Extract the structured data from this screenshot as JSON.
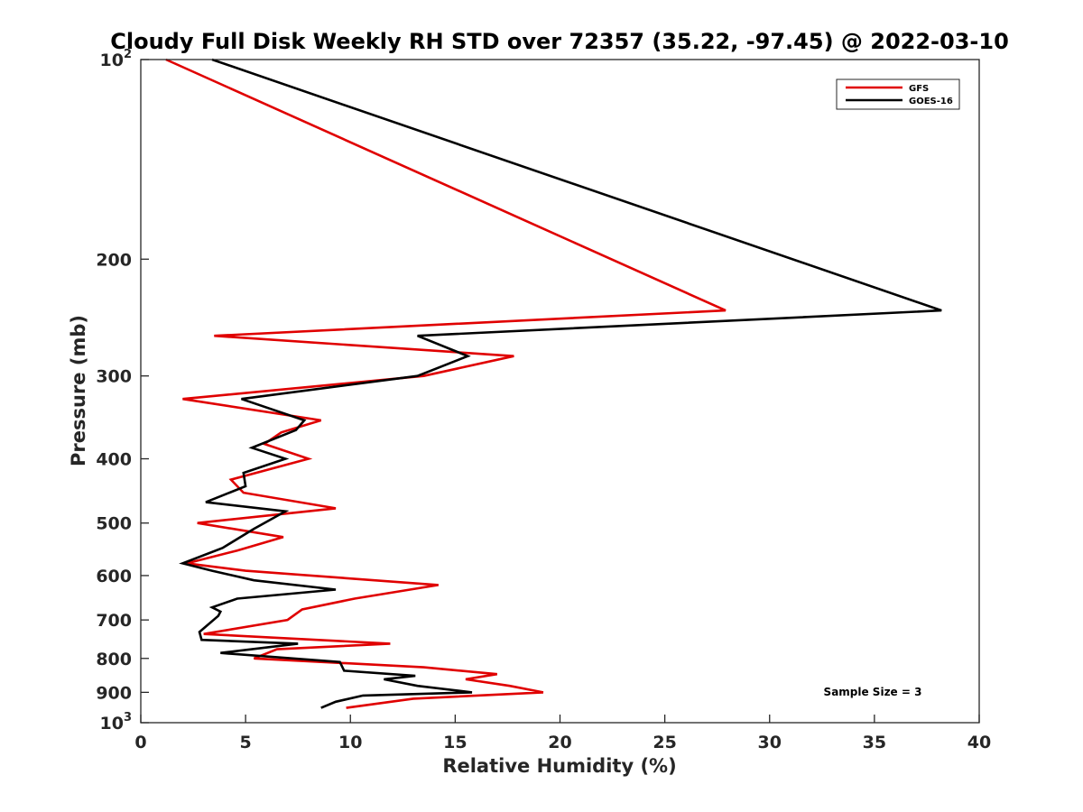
{
  "chart_data": {
    "type": "line",
    "orientation": "profile",
    "title": "Cloudy Full Disk Weekly RH STD over 72357 (35.22, -97.45) @ 2022-03-10",
    "xlabel": "Relative Humidity (%)",
    "ylabel": "Pressure (mb)",
    "xlim": [
      0,
      40
    ],
    "ylim": [
      100,
      1000
    ],
    "y_scale": "log",
    "y_reversed": true,
    "x_ticks": [
      0,
      5,
      10,
      15,
      20,
      25,
      30,
      35,
      40
    ],
    "x_tick_labels": [
      "0",
      "5",
      "10",
      "15",
      "20",
      "25",
      "30",
      "35",
      "40"
    ],
    "y_ticks": [
      {
        "value": 100,
        "label": "10",
        "sup": "2"
      },
      {
        "value": 200,
        "label": "200"
      },
      {
        "value": 300,
        "label": "300"
      },
      {
        "value": 400,
        "label": "400"
      },
      {
        "value": 500,
        "label": "500"
      },
      {
        "value": 600,
        "label": "600"
      },
      {
        "value": 700,
        "label": "700"
      },
      {
        "value": 800,
        "label": "800"
      },
      {
        "value": 900,
        "label": "900"
      },
      {
        "value": 1000,
        "label": "10",
        "sup": "3"
      }
    ],
    "grid": false,
    "legend_position": "top-right",
    "annotation": "Sample Size = 3",
    "series": [
      {
        "name": "GFS",
        "color": "#e00000",
        "points": [
          [
            1.2,
            100
          ],
          [
            27.9,
            239
          ],
          [
            3.5,
            261
          ],
          [
            17.8,
            280
          ],
          [
            13.5,
            300
          ],
          [
            2.0,
            325
          ],
          [
            8.6,
            350
          ],
          [
            6.7,
            365
          ],
          [
            5.9,
            380
          ],
          [
            8.0,
            400
          ],
          [
            4.3,
            430
          ],
          [
            4.9,
            450
          ],
          [
            9.3,
            475
          ],
          [
            2.7,
            500
          ],
          [
            6.8,
            525
          ],
          [
            4.6,
            550
          ],
          [
            2.2,
            575
          ],
          [
            5.0,
            590
          ],
          [
            14.2,
            620
          ],
          [
            10.2,
            650
          ],
          [
            7.7,
            675
          ],
          [
            7.0,
            700
          ],
          [
            3.0,
            735
          ],
          [
            11.9,
            760
          ],
          [
            6.5,
            775
          ],
          [
            5.4,
            800
          ],
          [
            13.5,
            825
          ],
          [
            17.0,
            845
          ],
          [
            15.5,
            860
          ],
          [
            17.6,
            880
          ],
          [
            19.2,
            900
          ],
          [
            13.0,
            920
          ],
          [
            9.8,
            950
          ]
        ]
      },
      {
        "name": "GOES-16",
        "color": "#000000",
        "points": [
          [
            3.4,
            100
          ],
          [
            38.2,
            239
          ],
          [
            13.2,
            261
          ],
          [
            15.6,
            280
          ],
          [
            13.2,
            300
          ],
          [
            4.8,
            325
          ],
          [
            7.8,
            350
          ],
          [
            7.4,
            362
          ],
          [
            5.3,
            385
          ],
          [
            6.9,
            400
          ],
          [
            4.9,
            420
          ],
          [
            5.0,
            440
          ],
          [
            3.1,
            465
          ],
          [
            6.9,
            480
          ],
          [
            5.4,
            510
          ],
          [
            3.9,
            545
          ],
          [
            2.0,
            575
          ],
          [
            3.4,
            590
          ],
          [
            5.4,
            610
          ],
          [
            9.3,
            630
          ],
          [
            4.6,
            650
          ],
          [
            3.4,
            670
          ],
          [
            3.8,
            680
          ],
          [
            3.7,
            690
          ],
          [
            2.8,
            730
          ],
          [
            2.9,
            750
          ],
          [
            7.5,
            760
          ],
          [
            3.8,
            785
          ],
          [
            9.5,
            810
          ],
          [
            9.7,
            835
          ],
          [
            13.1,
            850
          ],
          [
            11.6,
            860
          ],
          [
            13.2,
            880
          ],
          [
            15.8,
            900
          ],
          [
            10.6,
            910
          ],
          [
            9.3,
            930
          ],
          [
            8.6,
            950
          ]
        ]
      }
    ]
  }
}
